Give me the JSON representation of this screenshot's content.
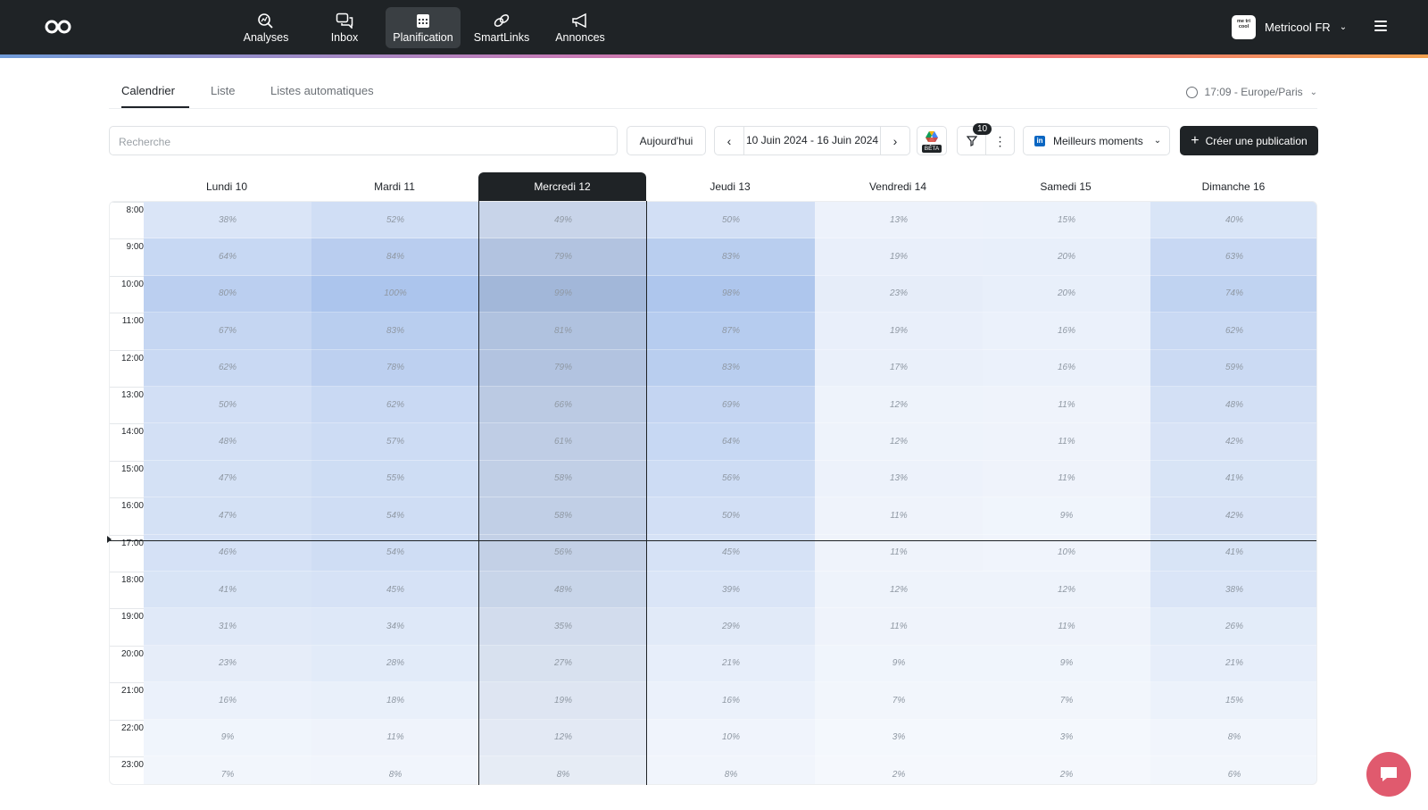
{
  "header": {
    "nav": [
      {
        "label": "Analyses",
        "icon": "analytics-search-icon",
        "active": false
      },
      {
        "label": "Inbox",
        "icon": "chat-bubbles-icon",
        "active": false
      },
      {
        "label": "Planification",
        "icon": "calendar-icon",
        "active": true
      },
      {
        "label": "SmartLinks",
        "icon": "link-icon",
        "active": false
      },
      {
        "label": "Annonces",
        "icon": "megaphone-icon",
        "active": false
      }
    ],
    "account": {
      "name": "Metricool FR",
      "avatar": "me tri cool"
    }
  },
  "tabs": [
    {
      "label": "Calendrier",
      "active": true
    },
    {
      "label": "Liste",
      "active": false
    },
    {
      "label": "Listes automatiques",
      "active": false
    }
  ],
  "timezone": "17:09 - Europe/Paris",
  "toolbar": {
    "search_placeholder": "Recherche",
    "today": "Aujourd'hui",
    "date_range": "10 Juin 2024 - 16 Juin 2024",
    "beta": "BÉTA",
    "filter_count": "10",
    "best_times": "Meilleurs moments",
    "create": "Créer une publication"
  },
  "calendar": {
    "days": [
      "Lundi 10",
      "Mardi 11",
      "Mercredi 12",
      "Jeudi 13",
      "Vendredi 14",
      "Samedi 15",
      "Dimanche 16"
    ],
    "today_index": 2,
    "hours": [
      "8:00",
      "9:00",
      "10:00",
      "11:00",
      "12:00",
      "13:00",
      "14:00",
      "15:00",
      "16:00",
      "17:00",
      "18:00",
      "19:00",
      "20:00",
      "21:00",
      "22:00",
      "23:00"
    ],
    "now_hour": 17.15,
    "values": [
      [
        38,
        52,
        49,
        50,
        13,
        15,
        40
      ],
      [
        64,
        84,
        79,
        83,
        19,
        20,
        63
      ],
      [
        80,
        100,
        99,
        98,
        23,
        20,
        74
      ],
      [
        67,
        83,
        81,
        87,
        19,
        16,
        62
      ],
      [
        62,
        78,
        79,
        83,
        17,
        16,
        59
      ],
      [
        50,
        62,
        66,
        69,
        12,
        11,
        48
      ],
      [
        48,
        57,
        61,
        64,
        12,
        11,
        42
      ],
      [
        47,
        55,
        58,
        56,
        13,
        11,
        41
      ],
      [
        47,
        54,
        58,
        50,
        11,
        9,
        42
      ],
      [
        46,
        54,
        56,
        45,
        11,
        10,
        41
      ],
      [
        41,
        45,
        48,
        39,
        12,
        12,
        38
      ],
      [
        31,
        34,
        35,
        29,
        11,
        11,
        26
      ],
      [
        23,
        28,
        27,
        21,
        9,
        9,
        21
      ],
      [
        16,
        18,
        19,
        16,
        7,
        7,
        15
      ],
      [
        9,
        11,
        12,
        10,
        3,
        3,
        8
      ],
      [
        7,
        8,
        8,
        8,
        2,
        2,
        6
      ]
    ]
  },
  "colors": {
    "dark": "#1f2326",
    "heat": "#8fb0e0",
    "chat": "#e05a6e"
  }
}
